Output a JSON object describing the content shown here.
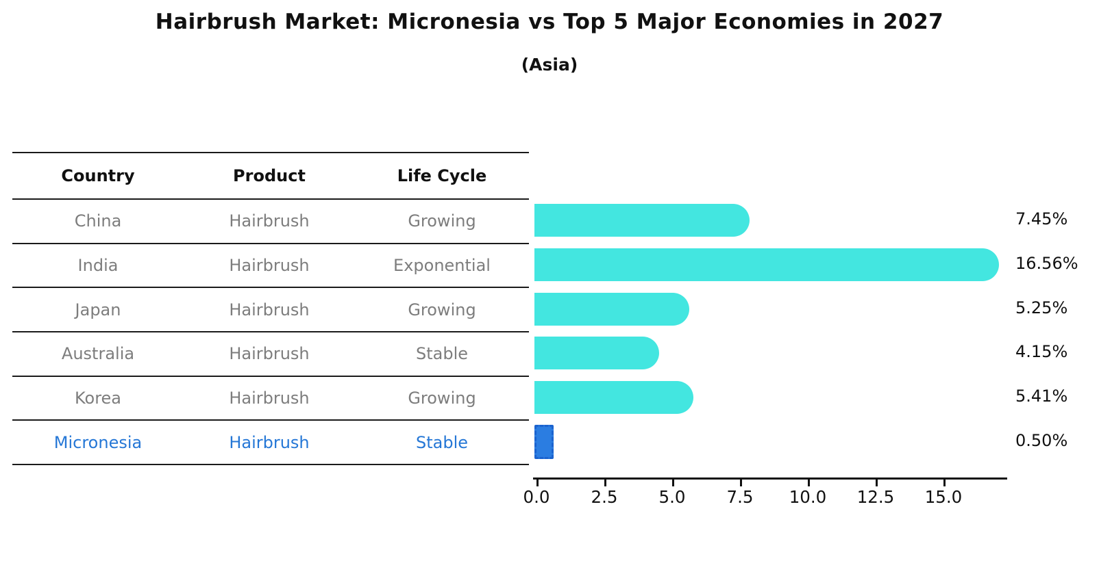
{
  "title": "Hairbrush Market: Micronesia vs Top 5 Major Economies in 2027",
  "subtitle": "(Asia)",
  "table": {
    "headers": [
      "Country",
      "Product",
      "Life Cycle"
    ],
    "rows": [
      {
        "country": "China",
        "product": "Hairbrush",
        "life_cycle": "Growing",
        "highlight": false
      },
      {
        "country": "India",
        "product": "Hairbrush",
        "life_cycle": "Exponential",
        "highlight": false
      },
      {
        "country": "Japan",
        "product": "Hairbrush",
        "life_cycle": "Growing",
        "highlight": false
      },
      {
        "country": "Australia",
        "product": "Hairbrush",
        "life_cycle": "Stable",
        "highlight": false
      },
      {
        "country": "Korea",
        "product": "Hairbrush",
        "life_cycle": "Growing",
        "highlight": false
      },
      {
        "country": "Micronesia",
        "product": "Hairbrush",
        "life_cycle": "Stable",
        "highlight": true
      }
    ]
  },
  "chart_data": {
    "type": "bar",
    "orientation": "horizontal",
    "title": "Hairbrush Market: Micronesia vs Top 5 Major Economies in 2027",
    "subtitle": "(Asia)",
    "categories": [
      "China",
      "India",
      "Japan",
      "Australia",
      "Korea",
      "Micronesia"
    ],
    "values": [
      7.45,
      16.56,
      5.25,
      4.15,
      5.41,
      0.5
    ],
    "value_labels": [
      "7.45%",
      "16.56%",
      "5.25%",
      "4.15%",
      "5.41%",
      "0.50%"
    ],
    "x_ticks": [
      "0.0",
      "2.5",
      "5.0",
      "7.5",
      "10.0",
      "12.5",
      "15.0"
    ],
    "xlim": [
      0,
      17.4
    ],
    "grid": false,
    "legend": "none",
    "bar_color": "#43e6e0",
    "highlight_color": "#2b7de1",
    "highlight_border_color": "#1b63cf",
    "highlight_index": 5,
    "highlight_text_color": "#2577d6"
  }
}
